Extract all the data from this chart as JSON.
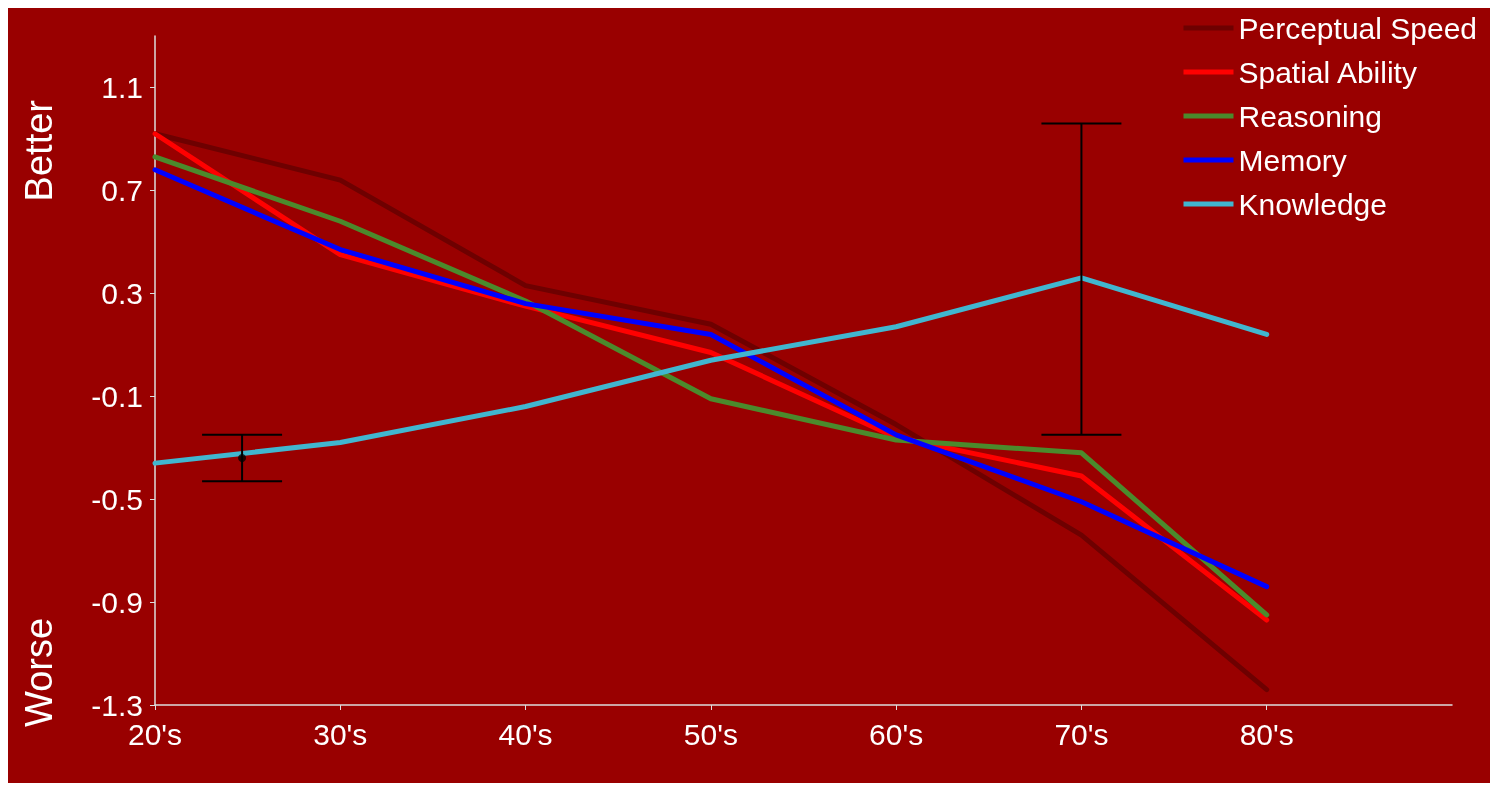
{
  "chart_data": {
    "type": "line",
    "annotations": [
      "Better",
      "Worse"
    ],
    "x": [
      20,
      30,
      40,
      50,
      60,
      70,
      80
    ],
    "xlim": [
      20,
      90
    ],
    "xticks": [
      {
        "value": 20,
        "label": "20's"
      },
      {
        "value": 30,
        "label": "30's"
      },
      {
        "value": 40,
        "label": "40's"
      },
      {
        "value": 50,
        "label": "50's"
      },
      {
        "value": 60,
        "label": "60's"
      },
      {
        "value": 70,
        "label": "70's"
      },
      {
        "value": 80,
        "label": "80's"
      }
    ],
    "ylim": [
      -1.3,
      1.3
    ],
    "yticks": [
      -1.3,
      -0.9,
      -0.5,
      -0.1,
      0.3,
      0.7,
      1.1
    ],
    "grid": false,
    "legend": "top right",
    "marker": "none",
    "line_style": "solid",
    "series": [
      {
        "name": "Perceptual Speed",
        "color": "#6e0000",
        "values": [
          0.92,
          0.74,
          0.33,
          0.18,
          -0.21,
          -0.64,
          -1.24
        ]
      },
      {
        "name": "Spatial Ability",
        "color": "#ff0000",
        "values": [
          0.92,
          0.45,
          0.25,
          0.07,
          -0.26,
          -0.41,
          -0.97
        ]
      },
      {
        "name": "Reasoning",
        "color": "#4b8a2c",
        "values": [
          0.83,
          0.58,
          0.27,
          -0.11,
          -0.27,
          -0.32,
          -0.95
        ]
      },
      {
        "name": "Memory",
        "color": "#0000ff",
        "values": [
          0.78,
          0.47,
          0.26,
          0.14,
          -0.25,
          -0.51,
          -0.84
        ]
      },
      {
        "name": "Knowledge",
        "color": "#41b6cf",
        "values": [
          -0.36,
          -0.28,
          -0.14,
          0.04,
          0.17,
          0.36,
          0.14
        ],
        "errors": [
          null,
          null,
          null,
          null,
          null,
          [
            -0.25,
            0.96
          ],
          null
        ]
      },
      {
        "type": "scatter",
        "marker": "circle",
        "color": "#000000",
        "x": [
          24.7
        ],
        "values": [
          -0.34
        ],
        "errors": [
          [
            -0.43,
            -0.25
          ]
        ]
      }
    ]
  }
}
